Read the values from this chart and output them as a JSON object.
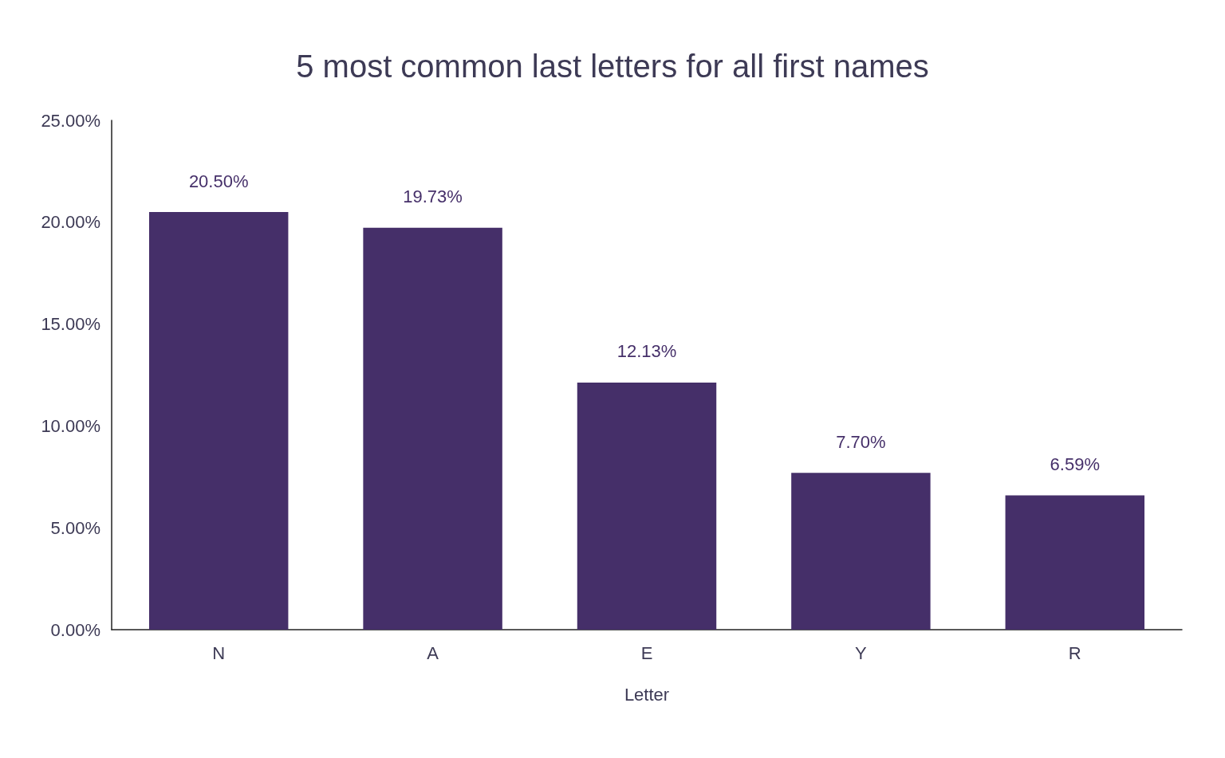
{
  "chart_data": {
    "type": "bar",
    "title": "5 most common last letters for all first names",
    "xlabel": "Letter",
    "categories": [
      "N",
      "A",
      "E",
      "Y",
      "R"
    ],
    "values": [
      20.5,
      19.73,
      12.13,
      7.7,
      6.59
    ],
    "value_labels": [
      "20.50%",
      "19.73%",
      "12.13%",
      "7.70%",
      "6.59%"
    ],
    "color": "#452f69",
    "ylim": [
      0,
      25
    ],
    "yticks": [
      {
        "value": 0,
        "label": "0.00%"
      },
      {
        "value": 5,
        "label": "5.00%"
      },
      {
        "value": 10,
        "label": "10.00%"
      },
      {
        "value": 15,
        "label": "15.00%"
      },
      {
        "value": 20,
        "label": "20.00%"
      },
      {
        "value": 25,
        "label": "25.00%"
      }
    ],
    "grid": false
  }
}
